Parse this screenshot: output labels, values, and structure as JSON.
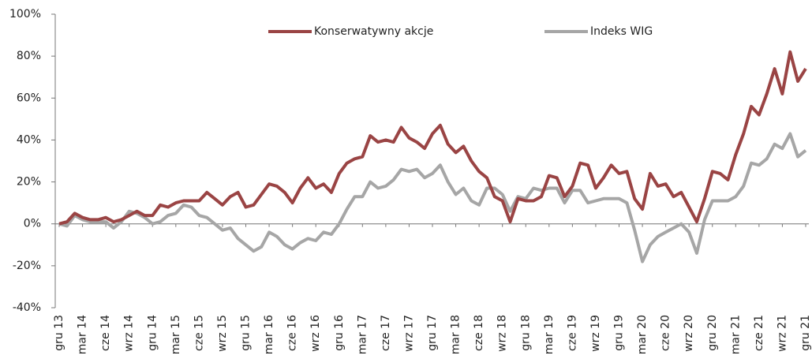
{
  "chart_data": {
    "type": "line",
    "categories": [
      "gru 13",
      null,
      null,
      "mar 14",
      null,
      null,
      "cze 14",
      null,
      null,
      "wrz 14",
      null,
      null,
      "gru 14",
      null,
      null,
      "mar 15",
      null,
      null,
      "cze 15",
      null,
      null,
      "wrz 15",
      null,
      null,
      "gru 15",
      null,
      null,
      "mar 16",
      null,
      null,
      "cze 16",
      null,
      null,
      "wrz 16",
      null,
      null,
      "gru 16",
      null,
      null,
      "mar 17",
      null,
      null,
      "cze 17",
      null,
      null,
      "wrz 17",
      null,
      null,
      "gru 17",
      null,
      null,
      "mar 18",
      null,
      null,
      "cze 18",
      null,
      null,
      "wrz 18",
      null,
      null,
      "gru 18",
      null,
      null,
      "mar 19",
      null,
      null,
      "cze 19",
      null,
      null,
      "wrz 19",
      null,
      null,
      "gru 19",
      null,
      null,
      "mar 20",
      null,
      null,
      "cze 20",
      null,
      null,
      "wrz 20",
      null,
      null,
      "gru 20",
      null,
      null,
      "mar 21",
      null,
      null,
      "cze 21",
      null,
      null,
      "wrz 21",
      null,
      null,
      "gru 21"
    ],
    "series": [
      {
        "name": "Konserwatywny akcje",
        "color": "#9a4444",
        "values": [
          0,
          1,
          5,
          3,
          2,
          2,
          3,
          1,
          2,
          4,
          6,
          4,
          4,
          9,
          8,
          10,
          11,
          11,
          11,
          15,
          12,
          9,
          13,
          15,
          8,
          9,
          14,
          19,
          18,
          15,
          10,
          17,
          22,
          17,
          19,
          15,
          24,
          29,
          31,
          32,
          42,
          39,
          40,
          39,
          46,
          41,
          39,
          36,
          43,
          47,
          38,
          34,
          37,
          30,
          25,
          22,
          13,
          11,
          1,
          12,
          11,
          11,
          13,
          23,
          22,
          13,
          18,
          29,
          28,
          17,
          22,
          28,
          24,
          25,
          12,
          7,
          24,
          18,
          19,
          13,
          15,
          8,
          1,
          12,
          25,
          24,
          21,
          33,
          43,
          56,
          52,
          62,
          74,
          62,
          82,
          68,
          74
        ]
      },
      {
        "name": "Indeks WIG",
        "color": "#a6a6a6",
        "values": [
          0,
          -1,
          4,
          2,
          1,
          1,
          1,
          -2,
          1,
          6,
          5,
          3,
          0,
          1,
          4,
          5,
          9,
          8,
          4,
          3,
          0,
          -3,
          -2,
          -7,
          -10,
          -13,
          -11,
          -4,
          -6,
          -10,
          -12,
          -9,
          -7,
          -8,
          -4,
          -5,
          0,
          7,
          13,
          13,
          20,
          17,
          18,
          21,
          26,
          25,
          26,
          22,
          24,
          28,
          20,
          14,
          17,
          11,
          9,
          17,
          17,
          14,
          6,
          13,
          12,
          17,
          16,
          17,
          17,
          10,
          16,
          16,
          10,
          11,
          12,
          12,
          12,
          10,
          -3,
          -18,
          -10,
          -6,
          -4,
          -2,
          0,
          -4,
          -14,
          2,
          11,
          11,
          11,
          13,
          18,
          29,
          28,
          31,
          38,
          36,
          43,
          32,
          35
        ]
      }
    ],
    "ylim": [
      -40,
      100
    ],
    "yticks": [
      {
        "value": -40,
        "label": "-40%"
      },
      {
        "value": -20,
        "label": "-20%"
      },
      {
        "value": 0,
        "label": "0%"
      },
      {
        "value": 20,
        "label": "20%"
      },
      {
        "value": 40,
        "label": "40%"
      },
      {
        "value": 60,
        "label": "60%"
      },
      {
        "value": 80,
        "label": "80%"
      },
      {
        "value": 100,
        "label": "100%"
      }
    ],
    "grid": false,
    "legend": "top"
  }
}
